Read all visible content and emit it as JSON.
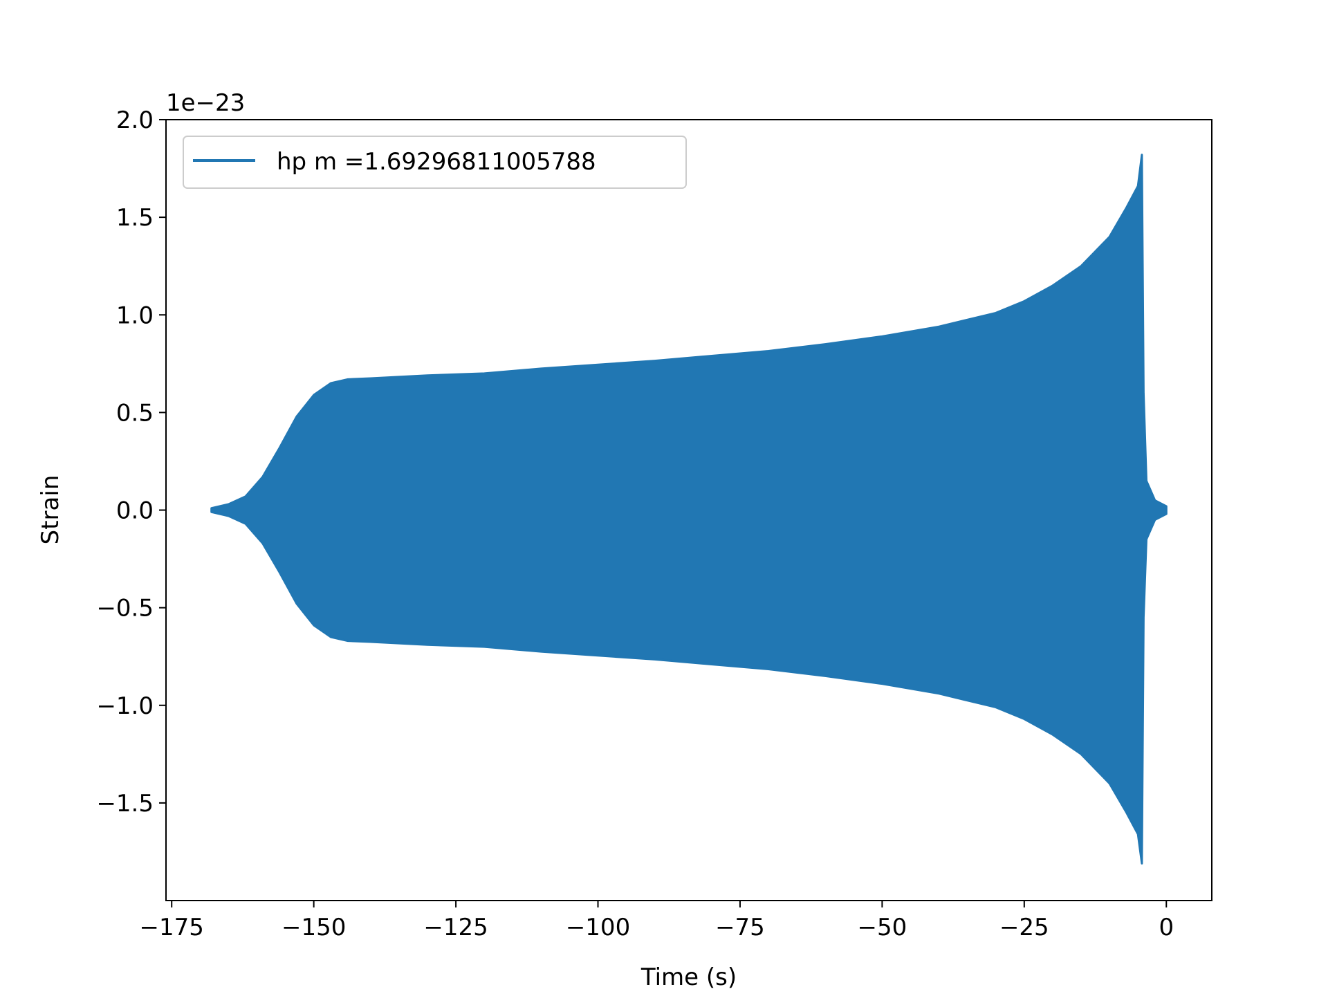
{
  "chart_data": {
    "type": "line",
    "xlabel": "Time (s)",
    "ylabel": "Strain",
    "y_offset_label": "1e−23",
    "xlim": [
      -176,
      8
    ],
    "ylim": [
      -2.0,
      2.0
    ],
    "xticks": [
      -175,
      -150,
      -125,
      -100,
      -75,
      -50,
      -25,
      0
    ],
    "xtick_labels": [
      "−175",
      "−150",
      "−125",
      "−100",
      "−75",
      "−50",
      "−25",
      "0"
    ],
    "yticks": [
      -1.5,
      -1.0,
      -0.5,
      0.0,
      0.5,
      1.0,
      1.5,
      2.0
    ],
    "ytick_labels": [
      "−1.5",
      "−1.0",
      "−0.5",
      "0.0",
      "0.5",
      "1.0",
      "1.5",
      "2.0"
    ],
    "grid": false,
    "legend_position": "top-left",
    "color": "#2177b3",
    "series": [
      {
        "name": "hp m =1.69296811005788",
        "envelope_upper": [
          [
            -168,
            0.01
          ],
          [
            -165,
            0.03
          ],
          [
            -162,
            0.07
          ],
          [
            -159,
            0.17
          ],
          [
            -156,
            0.32
          ],
          [
            -153,
            0.48
          ],
          [
            -150,
            0.59
          ],
          [
            -147,
            0.65
          ],
          [
            -144,
            0.67
          ],
          [
            -140,
            0.675
          ],
          [
            -130,
            0.69
          ],
          [
            -120,
            0.7
          ],
          [
            -110,
            0.725
          ],
          [
            -100,
            0.745
          ],
          [
            -90,
            0.765
          ],
          [
            -80,
            0.79
          ],
          [
            -70,
            0.815
          ],
          [
            -60,
            0.85
          ],
          [
            -50,
            0.89
          ],
          [
            -40,
            0.94
          ],
          [
            -30,
            1.01
          ],
          [
            -25,
            1.07
          ],
          [
            -20,
            1.15
          ],
          [
            -15,
            1.25
          ],
          [
            -10,
            1.4
          ],
          [
            -7,
            1.55
          ],
          [
            -5,
            1.66
          ],
          [
            -4.3,
            1.82
          ],
          [
            -4.0,
            0.6
          ],
          [
            -3.5,
            0.15
          ],
          [
            -2,
            0.05
          ],
          [
            0,
            0.02
          ]
        ],
        "envelope_lower": [
          [
            -168,
            -0.01
          ],
          [
            -165,
            -0.03
          ],
          [
            -162,
            -0.07
          ],
          [
            -159,
            -0.17
          ],
          [
            -156,
            -0.32
          ],
          [
            -153,
            -0.48
          ],
          [
            -150,
            -0.59
          ],
          [
            -147,
            -0.65
          ],
          [
            -144,
            -0.67
          ],
          [
            -140,
            -0.675
          ],
          [
            -130,
            -0.69
          ],
          [
            -120,
            -0.7
          ],
          [
            -110,
            -0.725
          ],
          [
            -100,
            -0.745
          ],
          [
            -90,
            -0.765
          ],
          [
            -80,
            -0.79
          ],
          [
            -70,
            -0.815
          ],
          [
            -60,
            -0.85
          ],
          [
            -50,
            -0.89
          ],
          [
            -40,
            -0.94
          ],
          [
            -30,
            -1.01
          ],
          [
            -25,
            -1.07
          ],
          [
            -20,
            -1.15
          ],
          [
            -15,
            -1.25
          ],
          [
            -10,
            -1.4
          ],
          [
            -7,
            -1.55
          ],
          [
            -5,
            -1.66
          ],
          [
            -4.3,
            -1.81
          ],
          [
            -4.0,
            -0.55
          ],
          [
            -3.5,
            -0.15
          ],
          [
            -2,
            -0.05
          ],
          [
            0,
            -0.02
          ]
        ]
      }
    ]
  }
}
